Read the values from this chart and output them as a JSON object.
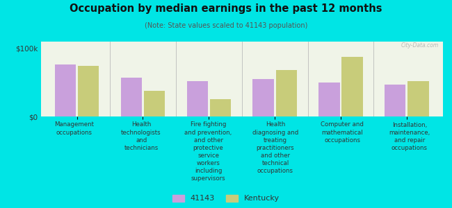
{
  "title": "Occupation by median earnings in the past 12 months",
  "subtitle": "(Note: State values scaled to 41143 population)",
  "background_color": "#00e5e5",
  "plot_bg_color": "#f0f4e8",
  "bar_color_41143": "#c9a0dc",
  "bar_color_kentucky": "#c8cc7a",
  "categories": [
    "Management\noccupations",
    "Health\ntechnologists\nand\ntechnicians",
    "Fire fighting\nand prevention,\nand other\nprotective\nservice\nworkers\nincluding\nsupervisors",
    "Health\ndiagnosing and\ntreating\npractitioners\nand other\ntechnical\noccupations",
    "Computer and\nmathematical\noccupations",
    "Installation,\nmaintenance,\nand repair\noccupations"
  ],
  "values_41143": [
    76000,
    57000,
    52000,
    55000,
    50000,
    47000
  ],
  "values_kentucky": [
    74000,
    38000,
    25000,
    68000,
    88000,
    52000
  ],
  "ylim": [
    0,
    110000
  ],
  "yticks": [
    0,
    100000
  ],
  "ytick_labels": [
    "$0",
    "$100k"
  ],
  "legend_labels": [
    "41143",
    "Kentucky"
  ],
  "watermark": "City-Data.com"
}
